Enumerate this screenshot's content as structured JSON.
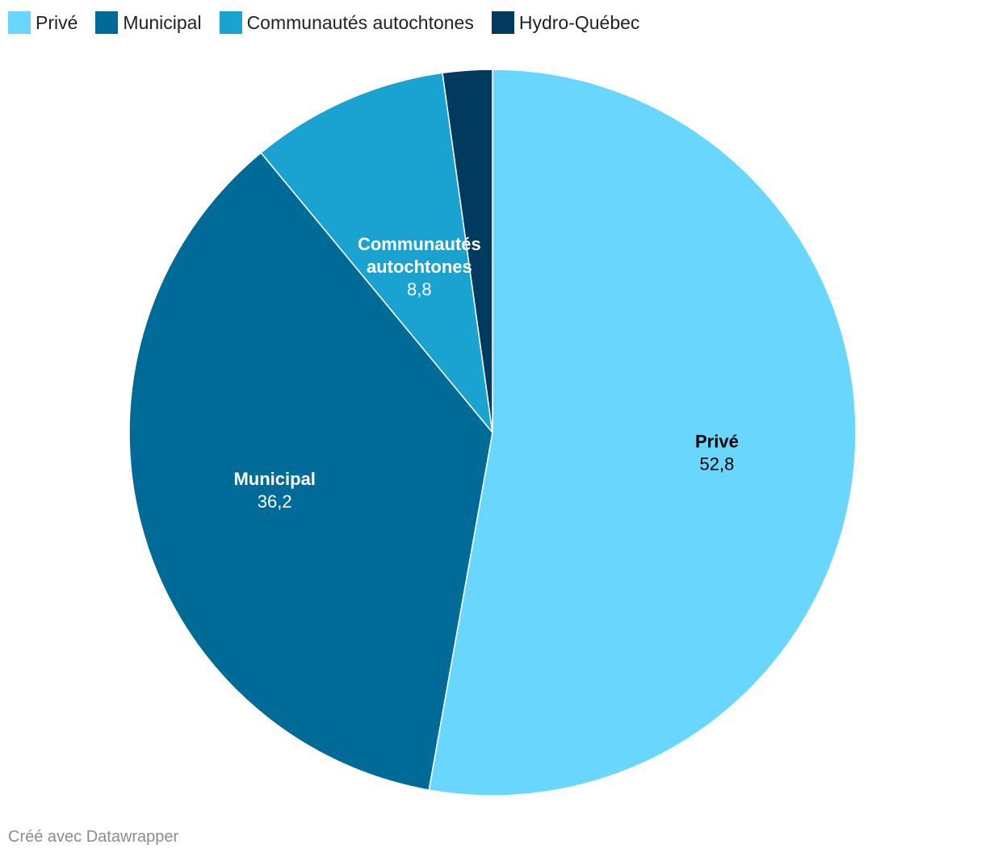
{
  "chart_data": {
    "type": "pie",
    "title": "",
    "legend_position": "top-left",
    "start": "top",
    "direction": "clockwise",
    "decimal_separator": ",",
    "slices": [
      {
        "name": "Privé",
        "value": 52.8,
        "value_label": "52,8",
        "color": "#69d6fd",
        "label_color": "#000000",
        "label_lines": [
          "Privé"
        ],
        "show_label": true
      },
      {
        "name": "Municipal",
        "value": 36.2,
        "value_label": "36,2",
        "color": "#006b96",
        "label_color": "#ffffff",
        "label_lines": [
          "Municipal"
        ],
        "show_label": true
      },
      {
        "name": "Communautés autochtones",
        "value": 8.8,
        "value_label": "8,8",
        "color": "#1aa3d0",
        "label_color": "#ffffff",
        "label_lines": [
          "Communautés",
          "autochtones"
        ],
        "show_label": true
      },
      {
        "name": "Hydro-Québec",
        "value": 2.2,
        "value_label": "2,2",
        "color": "#003a5e",
        "label_color": "#ffffff",
        "label_lines": [
          "Hydro-Québec"
        ],
        "show_label": false
      }
    ]
  },
  "footer": {
    "credit": "Créé avec Datawrapper"
  }
}
